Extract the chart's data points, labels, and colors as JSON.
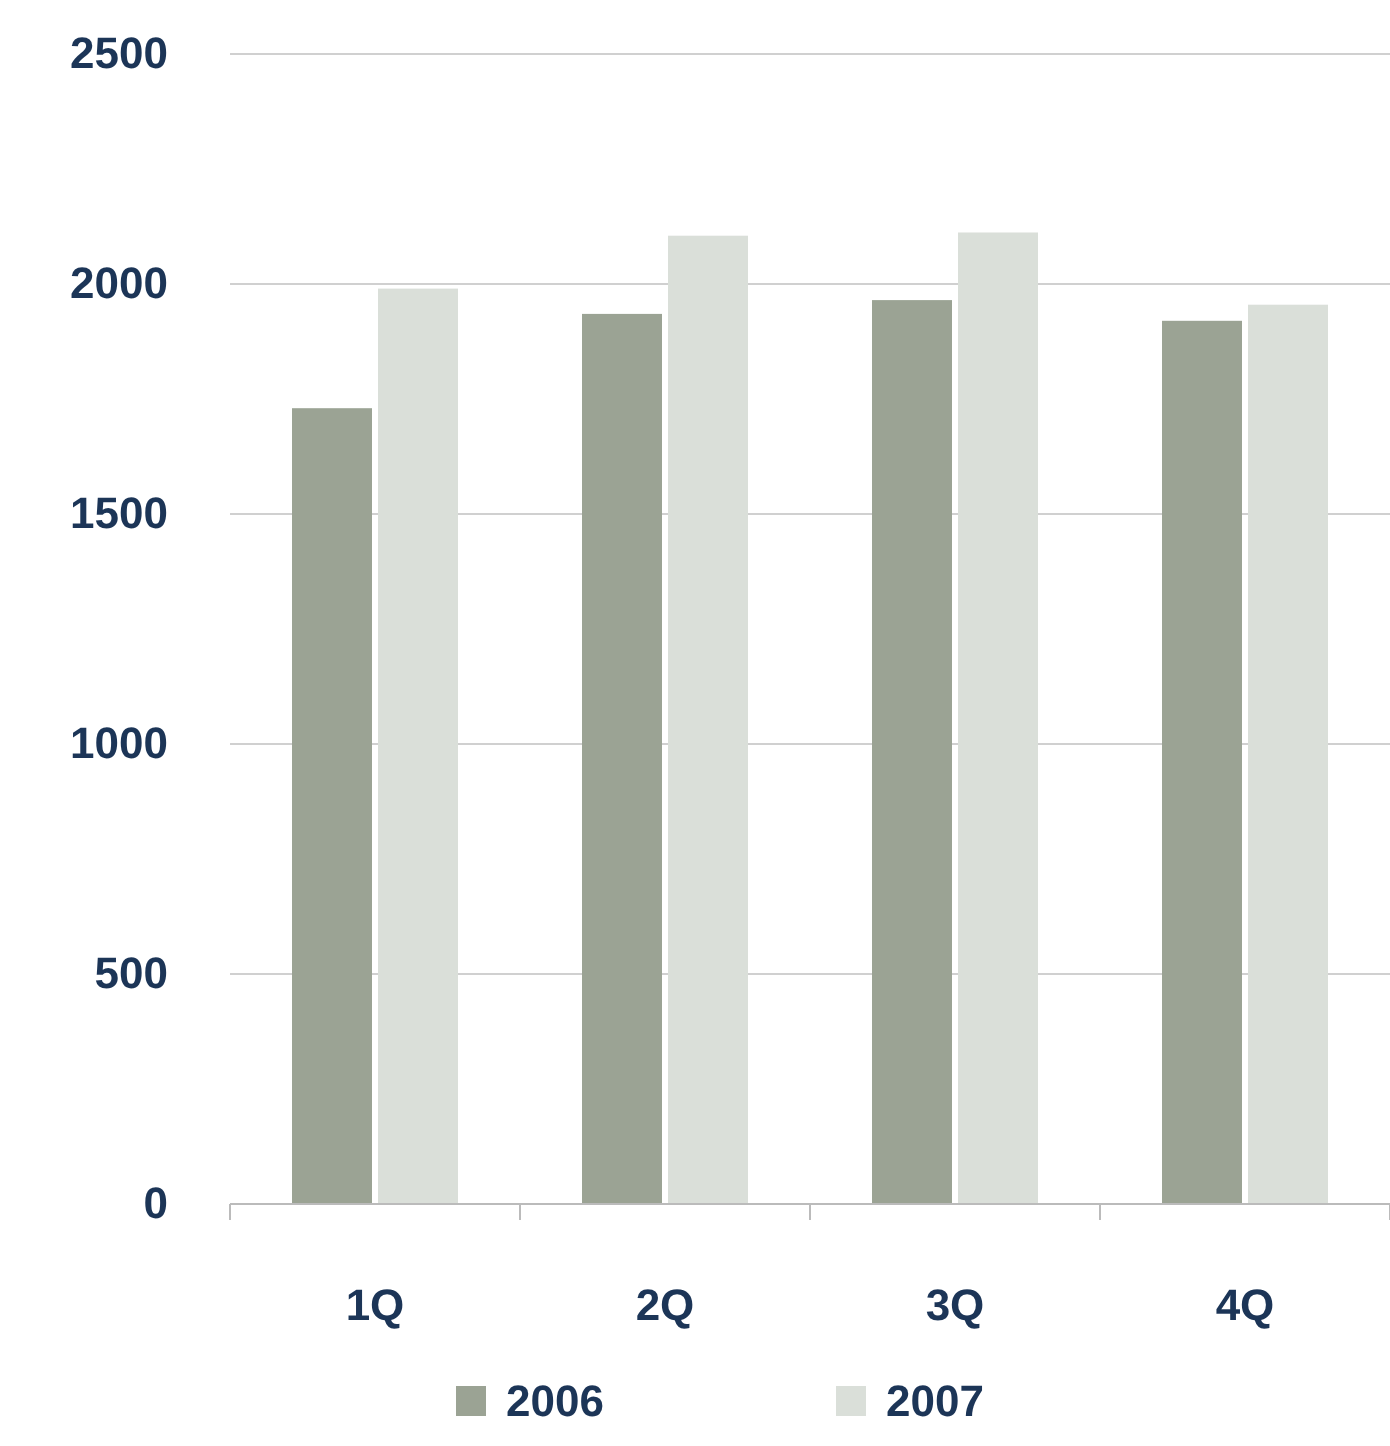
{
  "chart_data": {
    "type": "bar",
    "categories": [
      "1Q",
      "2Q",
      "3Q",
      "4Q"
    ],
    "series": [
      {
        "name": "2006",
        "color": "#9ba394",
        "values": [
          1730,
          1935,
          1965,
          1920
        ]
      },
      {
        "name": "2007",
        "color": "#dadfd9",
        "values": [
          1990,
          2105,
          2112,
          1955
        ]
      }
    ],
    "ylim": [
      0,
      2500
    ],
    "yticks": [
      0,
      500,
      1000,
      1500,
      2000,
      2500
    ],
    "grid": "y",
    "legend": "bottom"
  }
}
